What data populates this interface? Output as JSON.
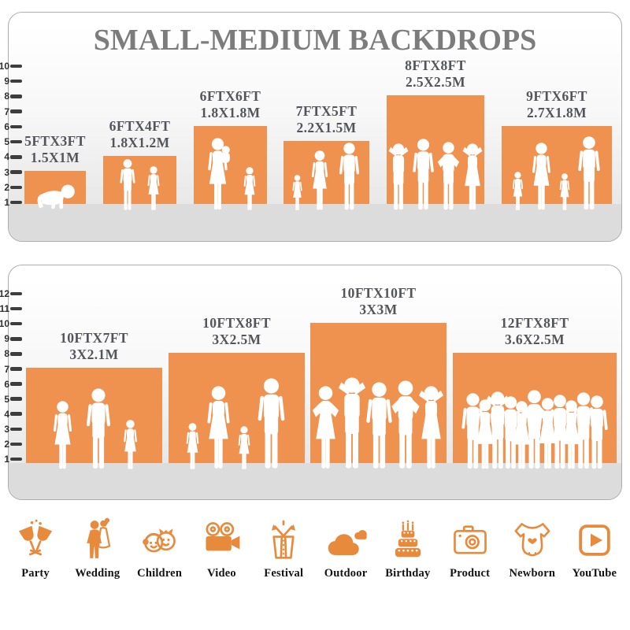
{
  "title": "SMALL-MEDIUM BACKDROPS",
  "colors": {
    "bar_orange": "#F0924F",
    "icon_orange": "#E78A3C",
    "title_gray": "#7C7C7C",
    "label_gray": "#54555A",
    "floor_gray": "#DCDCDC",
    "tick_dark": "#3D3D3D",
    "silhouette_white": "#FFFFFF"
  },
  "panels": [
    {
      "id": "small-medium",
      "ruler_min": 1,
      "ruler_max": 10,
      "ruler_unit": "feet",
      "bars": [
        {
          "size_ft": "5FTX3FT",
          "size_m": "1.5X1M",
          "width_ft": 5,
          "height_ft": 3,
          "figures": "baby-crawling"
        },
        {
          "size_ft": "6FTX4FT",
          "size_m": "1.8X1.2M",
          "width_ft": 6,
          "height_ft": 4,
          "figures": "two-children"
        },
        {
          "size_ft": "6FTX6FT",
          "size_m": "1.8X1.8M",
          "width_ft": 6,
          "height_ft": 6,
          "figures": "mother-with-baby-and-girl"
        },
        {
          "size_ft": "7FTX5FT",
          "size_m": "2.2X1.5M",
          "width_ft": 7,
          "height_ft": 5,
          "figures": "family-of-three"
        },
        {
          "size_ft": "8FTX8FT",
          "size_m": "2.5X2.5M",
          "width_ft": 8,
          "height_ft": 8,
          "figures": "four-adults-posing"
        },
        {
          "size_ft": "9FTX6FT",
          "size_m": "2.7X1.8M",
          "width_ft": 9,
          "height_ft": 6,
          "figures": "family-of-four"
        }
      ]
    },
    {
      "id": "medium-large",
      "ruler_min": 1,
      "ruler_max": 12,
      "ruler_unit": "feet",
      "bars": [
        {
          "size_ft": "10FTX7FT",
          "size_m": "3X2.1M",
          "width_ft": 10,
          "height_ft": 7,
          "figures": "three-person-family"
        },
        {
          "size_ft": "10FTX8FT",
          "size_m": "3X2.5M",
          "width_ft": 10,
          "height_ft": 8,
          "figures": "family-of-four-holding-hands"
        },
        {
          "size_ft": "10FTX10FT",
          "size_m": "3X3M",
          "width_ft": 10,
          "height_ft": 10,
          "figures": "five-adults-posing"
        },
        {
          "size_ft": "12FTX8FT",
          "size_m": "3.6X2.5M",
          "width_ft": 12,
          "height_ft": 8,
          "figures": "crowd"
        }
      ]
    }
  ],
  "categories": [
    {
      "label": "Party",
      "icon": "party-icon"
    },
    {
      "label": "Wedding",
      "icon": "wedding-icon"
    },
    {
      "label": "Children",
      "icon": "children-icon"
    },
    {
      "label": "Video",
      "icon": "video-icon"
    },
    {
      "label": "Festival",
      "icon": "festival-icon"
    },
    {
      "label": "Outdoor",
      "icon": "outdoor-icon"
    },
    {
      "label": "Birthday",
      "icon": "birthday-icon"
    },
    {
      "label": "Product",
      "icon": "product-icon"
    },
    {
      "label": "Newborn",
      "icon": "newborn-icon"
    },
    {
      "label": "YouTube",
      "icon": "youtube-icon"
    }
  ],
  "chart_data": [
    {
      "type": "bar",
      "title": "SMALL-MEDIUM BACKDROPS",
      "categories": [
        "5FTX3FT",
        "6FTX4FT",
        "6FTX6FT",
        "7FTX5FT",
        "8FTX8FT",
        "9FTX6FT"
      ],
      "series": [
        {
          "name": "height_ft",
          "values": [
            3,
            4,
            6,
            5,
            8,
            6
          ]
        },
        {
          "name": "width_ft",
          "values": [
            5,
            6,
            6,
            7,
            8,
            9
          ]
        }
      ],
      "metric_labels": [
        "1.5X1M",
        "1.8X1.2M",
        "1.8X1.8M",
        "2.2X1.5M",
        "2.5X2.5M",
        "2.7X1.8M"
      ],
      "xlabel": "",
      "ylabel": "feet",
      "ylim": [
        0,
        10
      ],
      "grid": false,
      "legend": "none"
    },
    {
      "type": "bar",
      "title": "",
      "categories": [
        "10FTX7FT",
        "10FTX8FT",
        "10FTX10FT",
        "12FTX8FT"
      ],
      "series": [
        {
          "name": "height_ft",
          "values": [
            7,
            8,
            10,
            8
          ]
        },
        {
          "name": "width_ft",
          "values": [
            10,
            10,
            10,
            12
          ]
        }
      ],
      "metric_labels": [
        "3X2.1M",
        "3X2.5M",
        "3X3M",
        "3.6X2.5M"
      ],
      "xlabel": "",
      "ylabel": "feet",
      "ylim": [
        0,
        12
      ],
      "grid": false,
      "legend": "none"
    }
  ]
}
